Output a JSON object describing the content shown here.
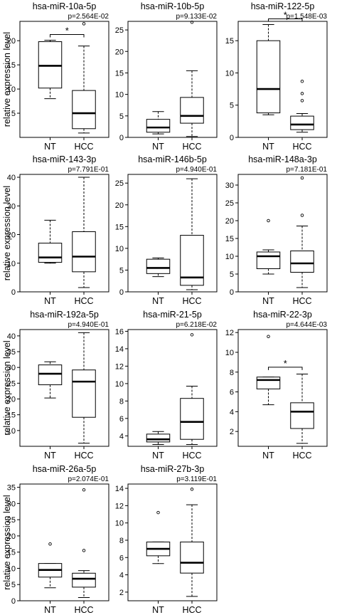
{
  "figure": {
    "ylabel": "relative expression level",
    "categories": [
      "NT",
      "HCC"
    ]
  },
  "chart_data": [
    {
      "type": "boxplot",
      "title": "hsa-miR-10a-5p",
      "pvalue": "p=2.564E-02",
      "significance": "*",
      "categories": [
        "NT",
        "HCC"
      ],
      "ylabel": "relative expression level",
      "ylim": [
        0,
        24
      ],
      "yticks": [
        5,
        10,
        15,
        20
      ],
      "series": [
        {
          "min": 8.0,
          "q1": 10.2,
          "median": 14.8,
          "q3": 19.8,
          "max": 20.1,
          "outliers": []
        },
        {
          "min": 0.9,
          "q1": 1.8,
          "median": 5.0,
          "q3": 9.7,
          "max": 18.9,
          "outliers": [
            23.5
          ]
        }
      ]
    },
    {
      "type": "boxplot",
      "title": "hsa-miR-10b-5p",
      "pvalue": "p=9.133E-02",
      "categories": [
        "NT",
        "HCC"
      ],
      "ylim": [
        0,
        27
      ],
      "yticks": [
        0,
        5,
        10,
        15,
        20,
        25
      ],
      "series": [
        {
          "min": 0.8,
          "q1": 1.2,
          "median": 2.3,
          "q3": 4.2,
          "max": 6.0,
          "outliers": []
        },
        {
          "min": 0.2,
          "q1": 3.3,
          "median": 5.0,
          "q3": 9.3,
          "max": 15.5,
          "outliers": [
            26.8
          ]
        }
      ]
    },
    {
      "type": "boxplot",
      "title": "hsa-miR-122-5p",
      "pvalue": "p=1.548E-03",
      "significance": "*",
      "categories": [
        "NT",
        "HCC"
      ],
      "ylim": [
        0,
        18
      ],
      "yticks": [
        0,
        5,
        10,
        15
      ],
      "series": [
        {
          "min": 3.5,
          "q1": 3.8,
          "median": 7.5,
          "q3": 15.0,
          "max": 17.5,
          "outliers": []
        },
        {
          "min": 0.8,
          "q1": 1.2,
          "median": 2.0,
          "q3": 3.3,
          "max": 3.7,
          "outliers": [
            5.7,
            6.8,
            8.7
          ]
        }
      ]
    },
    {
      "type": "boxplot",
      "title": "hsa-miR-143-3p",
      "pvalue": "p=7.791E-01",
      "categories": [
        "NT",
        "HCC"
      ],
      "ylim": [
        0,
        41
      ],
      "yticks": [
        0,
        10,
        20,
        30,
        40
      ],
      "series": [
        {
          "min": 10.0,
          "q1": 10.3,
          "median": 12.0,
          "q3": 17.0,
          "max": 25.0,
          "outliers": []
        },
        {
          "min": 1.5,
          "q1": 7.0,
          "median": 12.3,
          "q3": 21.0,
          "max": 40.0,
          "outliers": []
        }
      ]
    },
    {
      "type": "boxplot",
      "title": "hsa-miR-146b-5p",
      "pvalue": "p=4.940E-01",
      "categories": [
        "NT",
        "HCC"
      ],
      "ylim": [
        0,
        27
      ],
      "yticks": [
        0,
        5,
        10,
        15,
        20,
        25
      ],
      "series": [
        {
          "min": 3.5,
          "q1": 4.2,
          "median": 5.5,
          "q3": 7.5,
          "max": 7.8,
          "outliers": []
        },
        {
          "min": 0.5,
          "q1": 1.5,
          "median": 3.3,
          "q3": 13.0,
          "max": 26.0,
          "outliers": []
        }
      ]
    },
    {
      "type": "boxplot",
      "title": "hsa-miR-148a-3p",
      "pvalue": "p=7.181E-01",
      "categories": [
        "NT",
        "HCC"
      ],
      "ylim": [
        0,
        33
      ],
      "yticks": [
        0,
        5,
        10,
        15,
        20,
        25,
        30
      ],
      "series": [
        {
          "min": 5.0,
          "q1": 6.5,
          "median": 10.0,
          "q3": 11.2,
          "max": 11.8,
          "outliers": [
            20.0
          ]
        },
        {
          "min": 1.2,
          "q1": 5.5,
          "median": 8.0,
          "q3": 11.5,
          "max": 18.5,
          "outliers": [
            21.5,
            32.0
          ]
        }
      ]
    },
    {
      "type": "boxplot",
      "title": "hsa-miR-192a-5p",
      "pvalue": "p=4.940E-01",
      "categories": [
        "NT",
        "HCC"
      ],
      "ylabel": "relative expression level",
      "ylim": [
        5,
        42
      ],
      "yticks": [
        10,
        15,
        20,
        25,
        30,
        35,
        40
      ],
      "series": [
        {
          "min": 20.3,
          "q1": 24.5,
          "median": 28.0,
          "q3": 30.8,
          "max": 31.8,
          "outliers": []
        },
        {
          "min": 6.0,
          "q1": 14.2,
          "median": 25.5,
          "q3": 29.2,
          "max": 41.0,
          "outliers": []
        }
      ]
    },
    {
      "type": "boxplot",
      "title": "hsa-miR-21-5p",
      "pvalue": "p=6.218E-02",
      "categories": [
        "NT",
        "HCC"
      ],
      "ylim": [
        2.8,
        16.2
      ],
      "yticks": [
        4,
        6,
        8,
        10,
        12,
        14,
        16
      ],
      "series": [
        {
          "min": 3.0,
          "q1": 3.3,
          "median": 3.6,
          "q3": 4.2,
          "max": 4.5,
          "outliers": []
        },
        {
          "min": 3.0,
          "q1": 3.6,
          "median": 5.6,
          "q3": 8.3,
          "max": 9.7,
          "outliers": [
            15.6
          ]
        }
      ]
    },
    {
      "type": "boxplot",
      "title": "hsa-miR-22-3p",
      "pvalue": "p=4.644E-03",
      "significance": "*",
      "categories": [
        "NT",
        "HCC"
      ],
      "ylim": [
        0.5,
        12.3
      ],
      "yticks": [
        2,
        4,
        6,
        8,
        10,
        12
      ],
      "series": [
        {
          "min": 4.7,
          "q1": 6.3,
          "median": 7.2,
          "q3": 7.5,
          "max": 7.5,
          "outliers": [
            11.6
          ]
        },
        {
          "min": 0.8,
          "q1": 2.3,
          "median": 4.0,
          "q3": 4.9,
          "max": 7.8,
          "outliers": []
        }
      ]
    },
    {
      "type": "boxplot",
      "title": "hsa-miR-26a-5p",
      "pvalue": "p=2.074E-01",
      "categories": [
        "NT",
        "HCC"
      ],
      "ylabel": "relative expression level",
      "ylim": [
        0,
        36
      ],
      "yticks": [
        0,
        5,
        10,
        15,
        20,
        25,
        30,
        35
      ],
      "series": [
        {
          "min": 4.0,
          "q1": 7.3,
          "median": 9.5,
          "q3": 11.5,
          "max": 11.5,
          "outliers": [
            17.5
          ]
        },
        {
          "min": 1.0,
          "q1": 4.2,
          "median": 6.8,
          "q3": 8.5,
          "max": 9.3,
          "outliers": [
            15.5,
            34.2
          ]
        }
      ]
    },
    {
      "type": "boxplot",
      "title": "hsa-miR-27b-3p",
      "pvalue": "p=3.119E-01",
      "categories": [
        "NT",
        "HCC"
      ],
      "ylim": [
        1,
        14.5
      ],
      "yticks": [
        2,
        4,
        6,
        8,
        10,
        12,
        14
      ],
      "series": [
        {
          "min": 5.3,
          "q1": 6.2,
          "median": 7.0,
          "q3": 7.8,
          "max": 7.8,
          "outliers": [
            11.2
          ]
        },
        {
          "min": 1.5,
          "q1": 4.2,
          "median": 5.4,
          "q3": 7.8,
          "max": 12.1,
          "outliers": [
            13.9
          ]
        }
      ]
    }
  ]
}
